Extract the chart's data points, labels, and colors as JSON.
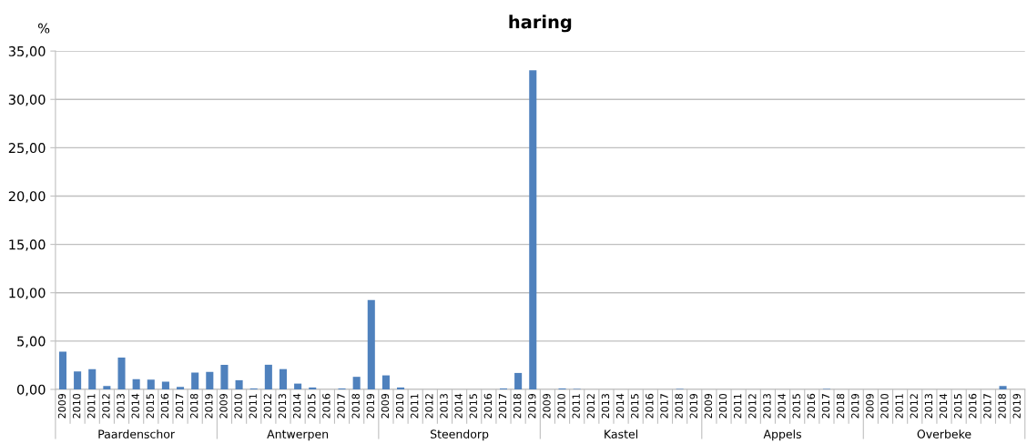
{
  "chart_data": {
    "type": "bar",
    "title": "haring",
    "ylabel": "%",
    "categories": [
      "2009",
      "2010",
      "2011",
      "2012",
      "2013",
      "2014",
      "2015",
      "2016",
      "2017",
      "2018",
      "2019",
      "2009",
      "2010",
      "2011",
      "2012",
      "2013",
      "2014",
      "2015",
      "2016",
      "2017",
      "2018",
      "2019",
      "2009",
      "2010",
      "2011",
      "2012",
      "2013",
      "2014",
      "2015",
      "2016",
      "2017",
      "2018",
      "2019",
      "2009",
      "2010",
      "2011",
      "2012",
      "2013",
      "2014",
      "2015",
      "2016",
      "2017",
      "2018",
      "2019",
      "2009",
      "2010",
      "2011",
      "2012",
      "2013",
      "2014",
      "2015",
      "2016",
      "2017",
      "2018",
      "2019",
      "2009",
      "2010",
      "2011",
      "2012",
      "2013",
      "2014",
      "2015",
      "2016",
      "2017",
      "2018",
      "2019"
    ],
    "values": [
      3.9,
      1.85,
      2.1,
      0.35,
      3.3,
      1.05,
      1.0,
      0.8,
      0.25,
      1.75,
      1.8,
      2.55,
      0.95,
      0.1,
      2.55,
      2.1,
      0.6,
      0.2,
      0,
      0.1,
      1.3,
      9.25,
      1.45,
      0.2,
      0,
      0,
      0,
      0,
      0,
      0,
      0.1,
      1.7,
      33.0,
      0,
      0.1,
      0.05,
      0,
      0,
      0,
      0,
      0,
      0,
      0.05,
      0,
      0,
      0,
      0,
      0,
      0,
      0,
      0,
      0,
      0.05,
      0,
      0,
      0,
      0,
      0,
      0,
      0,
      0,
      0,
      0,
      0,
      0.35,
      0
    ],
    "color": "#4f81bd",
    "annotations": [
      "Paardenschor",
      "Antwerpen",
      "Steendorp",
      "Kastel",
      "Appels",
      "Overbeke"
    ],
    "ylim": [
      0,
      35
    ],
    "yticks": [
      {
        "value": 0,
        "label": "0,00"
      },
      {
        "value": 5,
        "label": "5,00"
      },
      {
        "value": 10,
        "label": "10,00"
      },
      {
        "value": 15,
        "label": "15,00"
      },
      {
        "value": 20,
        "label": "20,00"
      },
      {
        "value": 25,
        "label": "25,00"
      },
      {
        "value": 30,
        "label": "30,00"
      },
      {
        "value": 35,
        "label": "35,00"
      }
    ],
    "grid": "y"
  }
}
